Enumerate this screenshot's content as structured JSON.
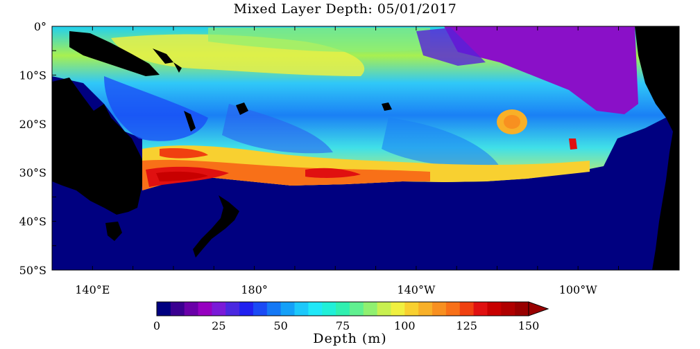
{
  "title": "Mixed Layer Depth: 05/01/2017",
  "colorbar_title": "Depth (m)",
  "colors": {
    "land": "#000000",
    "background": "#000080",
    "nodata": "#ffffff"
  },
  "palette": [
    "#000080",
    "#3a0090",
    "#6a00a8",
    "#9600c0",
    "#7a1ad8",
    "#4a28e0",
    "#2020f0",
    "#1a4af5",
    "#1478f5",
    "#14a0f8",
    "#1cc8fb",
    "#20e8f8",
    "#20f0d8",
    "#30f0b0",
    "#60f090",
    "#90f070",
    "#c8f050",
    "#f0f040",
    "#f8d030",
    "#f8b028",
    "#f89020",
    "#f87018",
    "#f04010",
    "#e01010",
    "#c80000",
    "#b00000",
    "#980000"
  ],
  "colorbar_ticks": [
    "0",
    "25",
    "50",
    "75",
    "100",
    "125",
    "150"
  ],
  "map": {
    "lon_range_deg_east": [
      130,
      285
    ],
    "lat_range": [
      -50,
      0
    ],
    "x_ticks": [
      "140°E",
      "180°",
      "140°W",
      "100°W"
    ],
    "x_tick_lons": [
      140,
      180,
      220,
      260
    ],
    "y_ticks": [
      "0°",
      "10°S",
      "20°S",
      "30°S",
      "40°S",
      "50°S"
    ],
    "y_tick_lats": [
      0,
      -10,
      -20,
      -30,
      -40,
      -50
    ]
  }
}
